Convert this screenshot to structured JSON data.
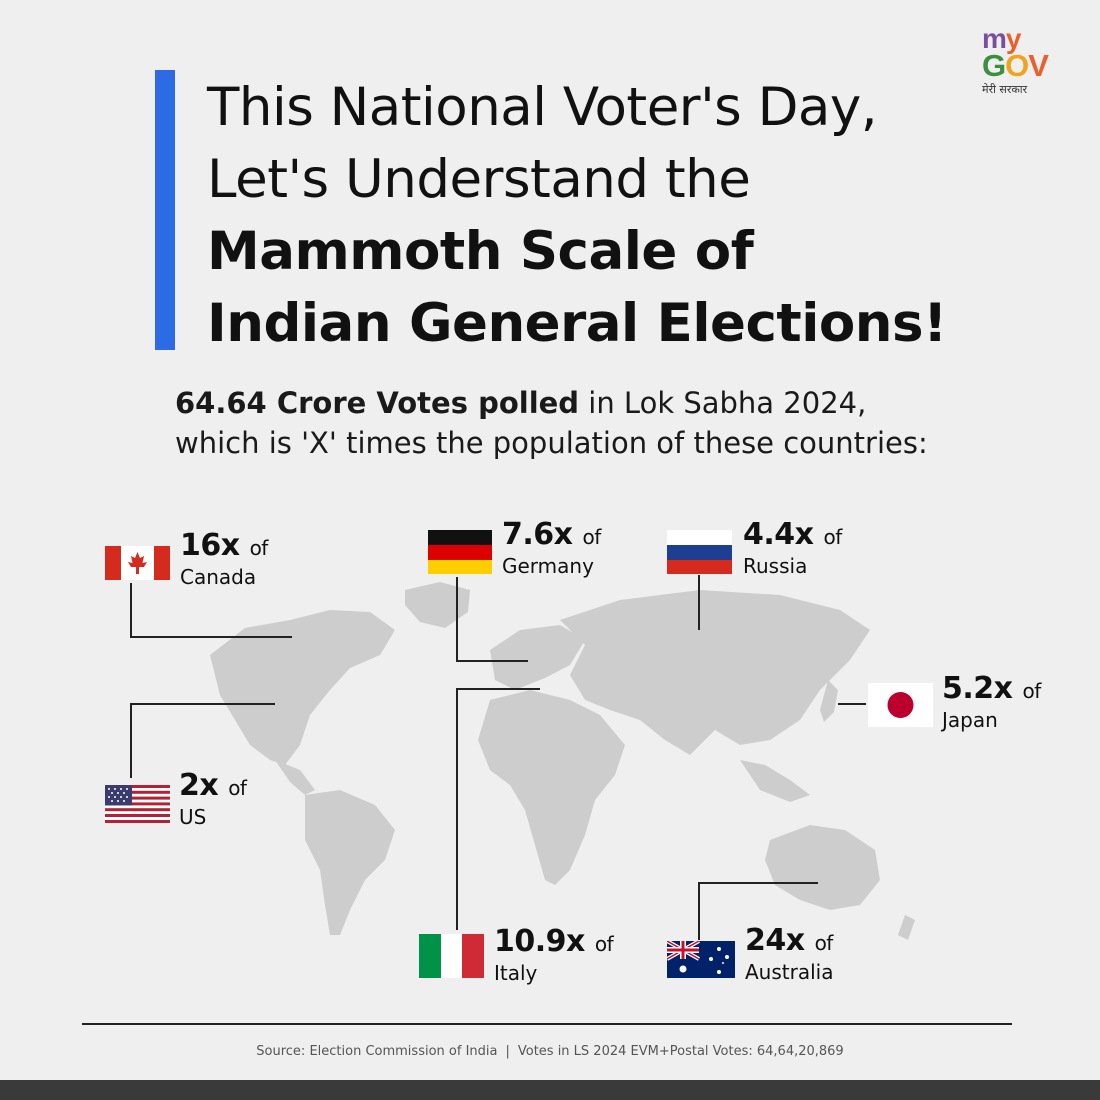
{
  "logo": {
    "my_m": "m",
    "my_y": "y",
    "gov_g": "G",
    "gov_o": "O",
    "gov_v": "V",
    "tagline": "मेरी सरकार"
  },
  "heading": {
    "line1": "This National Voter's Day,",
    "line2": "Let's Understand the",
    "line3": "Mammoth Scale of",
    "line4": "Indian General Elections!"
  },
  "subtitle": {
    "bold": "64.64 Crore Votes polled",
    "rest": " in Lok Sabha 2024,",
    "line2": "which is 'X' times the population of these countries:"
  },
  "countries": [
    {
      "multiple": "16x",
      "of": "of",
      "name": "Canada"
    },
    {
      "multiple": "7.6x",
      "of": "of",
      "name": "Germany"
    },
    {
      "multiple": "4.4x",
      "of": "of",
      "name": "Russia"
    },
    {
      "multiple": "5.2x",
      "of": "of",
      "name": "Japan"
    },
    {
      "multiple": "2x",
      "of": "of",
      "name": "US"
    },
    {
      "multiple": "10.9x",
      "of": "of",
      "name": "Italy"
    },
    {
      "multiple": "24x",
      "of": "of",
      "name": "Australia"
    }
  ],
  "footer": {
    "source": "Source: Election Commission of India",
    "separator": "|",
    "votes": "Votes in LS 2024 EVM+Postal Votes: 64,64,20,869"
  },
  "colors": {
    "accent": "#2d6be4",
    "background": "#efefef",
    "map": "#cdcdcd"
  }
}
